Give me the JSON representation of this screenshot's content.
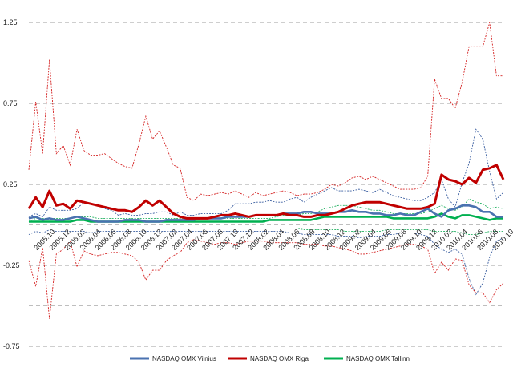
{
  "chart_data": {
    "type": "line",
    "title": "",
    "xlabel": "",
    "ylabel": "",
    "ylim": [
      -0.75,
      1.25
    ],
    "y_ticks": [
      -0.75,
      -0.25,
      0.25,
      0.75,
      1.25
    ],
    "x_tick_labels": [
      "2005.10",
      "2005.12",
      "2006.02",
      "2006.04",
      "2006.06",
      "2006.08",
      "2006.10",
      "2006.12",
      "2007.02",
      "2007.04",
      "2007.06",
      "2007.08",
      "2007.10",
      "2007.12",
      "2008.02",
      "2008.04",
      "2008.06",
      "2008.08",
      "2008.10",
      "2008.12",
      "2009.02",
      "2009.04",
      "2009.06",
      "2009.08",
      "2009.10",
      "2009.12",
      "2010.02",
      "2010.04",
      "2010.06",
      "2010.08",
      "2010.10"
    ],
    "grid": "horizontal dashed",
    "legend_position": "bottom",
    "series": [
      {
        "name": "NASDAQ OMX Vilnius",
        "color": "#4a72b0",
        "band_color": "#3a5ea0",
        "values": [
          0.04,
          0.05,
          0.03,
          0.04,
          0.03,
          0.03,
          0.04,
          0.05,
          0.04,
          0.03,
          0.02,
          0.02,
          0.02,
          0.02,
          0.03,
          0.03,
          0.03,
          0.02,
          0.02,
          0.02,
          0.03,
          0.03,
          0.03,
          0.03,
          0.03,
          0.04,
          0.04,
          0.04,
          0.04,
          0.05,
          0.05,
          0.05,
          0.05,
          0.06,
          0.06,
          0.06,
          0.06,
          0.07,
          0.07,
          0.07,
          0.08,
          0.08,
          0.07,
          0.07,
          0.07,
          0.08,
          0.08,
          0.09,
          0.08,
          0.08,
          0.07,
          0.07,
          0.06,
          0.06,
          0.07,
          0.06,
          0.06,
          0.08,
          0.1,
          0.07,
          0.05,
          0.09,
          0.1,
          0.12,
          0.12,
          0.11,
          0.08,
          0.08,
          0.05,
          0.05
        ],
        "upper": [
          0.05,
          0.07,
          0.05,
          0.11,
          0.09,
          0.09,
          0.09,
          0.1,
          0.14,
          0.13,
          0.12,
          0.1,
          0.09,
          0.06,
          0.07,
          0.06,
          0.06,
          0.07,
          0.07,
          0.08,
          0.08,
          0.06,
          0.08,
          0.06,
          0.06,
          0.07,
          0.07,
          0.07,
          0.07,
          0.09,
          0.13,
          0.13,
          0.13,
          0.14,
          0.14,
          0.15,
          0.14,
          0.14,
          0.16,
          0.17,
          0.14,
          0.17,
          0.19,
          0.21,
          0.23,
          0.21,
          0.21,
          0.21,
          0.22,
          0.21,
          0.2,
          0.22,
          0.2,
          0.18,
          0.17,
          0.16,
          0.15,
          0.15,
          0.17,
          0.2,
          0.28,
          0.16,
          0.11,
          0.26,
          0.38,
          0.59,
          0.53,
          0.33,
          0.16,
          0.2
        ],
        "lower": [
          -0.06,
          -0.04,
          -0.05,
          -0.03,
          -0.04,
          -0.04,
          -0.04,
          -0.04,
          -0.04,
          -0.05,
          -0.04,
          -0.04,
          -0.04,
          -0.04,
          -0.04,
          -0.04,
          -0.04,
          -0.04,
          -0.04,
          -0.04,
          -0.04,
          -0.04,
          -0.04,
          -0.04,
          -0.04,
          -0.04,
          -0.04,
          -0.04,
          -0.04,
          -0.04,
          -0.04,
          -0.04,
          -0.04,
          -0.04,
          -0.04,
          -0.04,
          -0.04,
          -0.04,
          -0.05,
          -0.05,
          -0.06,
          -0.06,
          -0.06,
          -0.06,
          -0.06,
          -0.07,
          -0.07,
          -0.07,
          -0.08,
          -0.07,
          -0.07,
          -0.07,
          -0.06,
          -0.06,
          -0.05,
          -0.05,
          -0.05,
          -0.06,
          -0.07,
          -0.12,
          -0.15,
          -0.17,
          -0.15,
          -0.18,
          -0.33,
          -0.43,
          -0.36,
          -0.2,
          -0.1,
          -0.08
        ]
      },
      {
        "name": "NASDAQ OMX Riga",
        "color": "#c00000",
        "band_color": "#d42020",
        "values": [
          0.1,
          0.17,
          0.11,
          0.21,
          0.12,
          0.13,
          0.1,
          0.15,
          0.14,
          0.13,
          0.12,
          0.11,
          0.1,
          0.09,
          0.09,
          0.08,
          0.11,
          0.15,
          0.12,
          0.15,
          0.11,
          0.07,
          0.05,
          0.04,
          0.04,
          0.04,
          0.04,
          0.05,
          0.06,
          0.06,
          0.07,
          0.06,
          0.05,
          0.06,
          0.06,
          0.06,
          0.06,
          0.07,
          0.06,
          0.06,
          0.05,
          0.05,
          0.06,
          0.06,
          0.07,
          0.08,
          0.1,
          0.12,
          0.13,
          0.14,
          0.14,
          0.14,
          0.13,
          0.12,
          0.11,
          0.1,
          0.1,
          0.1,
          0.11,
          0.13,
          0.31,
          0.28,
          0.27,
          0.25,
          0.29,
          0.26,
          0.34,
          0.35,
          0.37,
          0.28
        ],
        "upper": [
          0.34,
          0.76,
          0.44,
          1.02,
          0.44,
          0.49,
          0.37,
          0.59,
          0.46,
          0.43,
          0.43,
          0.44,
          0.41,
          0.38,
          0.36,
          0.35,
          0.5,
          0.67,
          0.53,
          0.58,
          0.48,
          0.37,
          0.35,
          0.17,
          0.15,
          0.19,
          0.18,
          0.19,
          0.2,
          0.19,
          0.21,
          0.19,
          0.17,
          0.2,
          0.18,
          0.19,
          0.2,
          0.21,
          0.2,
          0.18,
          0.19,
          0.19,
          0.2,
          0.22,
          0.25,
          0.24,
          0.26,
          0.29,
          0.3,
          0.28,
          0.3,
          0.28,
          0.26,
          0.24,
          0.22,
          0.22,
          0.22,
          0.23,
          0.3,
          0.9,
          0.78,
          0.78,
          0.72,
          0.88,
          1.1,
          1.1,
          1.1,
          1.25,
          0.92,
          0.92
        ],
        "lower": [
          -0.22,
          -0.38,
          -0.14,
          -0.58,
          -0.18,
          -0.15,
          -0.1,
          -0.26,
          -0.16,
          -0.18,
          -0.19,
          -0.18,
          -0.17,
          -0.17,
          -0.18,
          -0.19,
          -0.23,
          -0.34,
          -0.28,
          -0.28,
          -0.22,
          -0.19,
          -0.17,
          -0.11,
          -0.09,
          -0.1,
          -0.11,
          -0.12,
          -0.11,
          -0.11,
          -0.12,
          -0.11,
          -0.1,
          -0.1,
          -0.1,
          -0.11,
          -0.11,
          -0.11,
          -0.11,
          -0.11,
          -0.12,
          -0.12,
          -0.12,
          -0.13,
          -0.13,
          -0.14,
          -0.15,
          -0.16,
          -0.18,
          -0.18,
          -0.17,
          -0.16,
          -0.15,
          -0.14,
          -0.13,
          -0.12,
          -0.12,
          -0.13,
          -0.15,
          -0.3,
          -0.23,
          -0.28,
          -0.21,
          -0.22,
          -0.37,
          -0.42,
          -0.42,
          -0.48,
          -0.4,
          -0.36
        ]
      },
      {
        "name": "NASDAQ OMX Tallinn",
        "color": "#00b050",
        "band_color": "#20b060",
        "values": [
          0.02,
          0.02,
          0.02,
          0.02,
          0.02,
          0.02,
          0.02,
          0.03,
          0.03,
          0.02,
          0.02,
          0.02,
          0.02,
          0.02,
          0.02,
          0.02,
          0.02,
          0.02,
          0.02,
          0.02,
          0.02,
          0.02,
          0.02,
          0.02,
          0.02,
          0.02,
          0.02,
          0.02,
          0.02,
          0.02,
          0.02,
          0.02,
          0.02,
          0.02,
          0.02,
          0.03,
          0.03,
          0.03,
          0.03,
          0.03,
          0.03,
          0.03,
          0.04,
          0.05,
          0.05,
          0.05,
          0.05,
          0.05,
          0.05,
          0.05,
          0.05,
          0.05,
          0.05,
          0.04,
          0.04,
          0.04,
          0.04,
          0.04,
          0.04,
          0.05,
          0.07,
          0.05,
          0.04,
          0.06,
          0.06,
          0.05,
          0.04,
          0.03,
          0.04,
          0.04
        ],
        "upper": [
          0.02,
          0.04,
          0.04,
          0.04,
          0.04,
          0.04,
          0.04,
          0.05,
          0.05,
          0.05,
          0.04,
          0.04,
          0.04,
          0.04,
          0.04,
          0.04,
          0.04,
          0.04,
          0.04,
          0.04,
          0.04,
          0.04,
          0.04,
          0.04,
          0.04,
          0.04,
          0.04,
          0.04,
          0.04,
          0.04,
          0.04,
          0.04,
          0.04,
          0.04,
          0.04,
          0.04,
          0.05,
          0.06,
          0.06,
          0.06,
          0.07,
          0.07,
          0.08,
          0.1,
          0.11,
          0.12,
          0.12,
          0.12,
          0.11,
          0.1,
          0.09,
          0.09,
          0.08,
          0.07,
          0.07,
          0.07,
          0.07,
          0.07,
          0.08,
          0.1,
          0.12,
          0.1,
          0.09,
          0.11,
          0.16,
          0.14,
          0.13,
          0.1,
          0.11,
          0.1
        ],
        "lower": [
          -0.02,
          -0.02,
          -0.02,
          -0.02,
          -0.02,
          -0.02,
          -0.02,
          -0.02,
          -0.02,
          -0.02,
          -0.02,
          -0.02,
          -0.02,
          -0.02,
          -0.02,
          -0.02,
          -0.02,
          -0.02,
          -0.02,
          -0.02,
          -0.02,
          -0.02,
          -0.02,
          -0.02,
          -0.02,
          -0.02,
          -0.02,
          -0.02,
          -0.02,
          -0.02,
          -0.02,
          -0.02,
          -0.02,
          -0.02,
          -0.02,
          -0.02,
          -0.02,
          -0.02,
          -0.02,
          -0.02,
          -0.03,
          -0.03,
          -0.03,
          -0.03,
          -0.03,
          -0.03,
          -0.04,
          -0.04,
          -0.04,
          -0.04,
          -0.04,
          -0.04,
          -0.03,
          -0.03,
          -0.03,
          -0.03,
          -0.03,
          -0.03,
          -0.03,
          -0.04,
          -0.04,
          -0.04,
          -0.04,
          -0.05,
          -0.06,
          -0.06,
          -0.05,
          -0.04,
          -0.04,
          -0.04
        ]
      }
    ]
  }
}
